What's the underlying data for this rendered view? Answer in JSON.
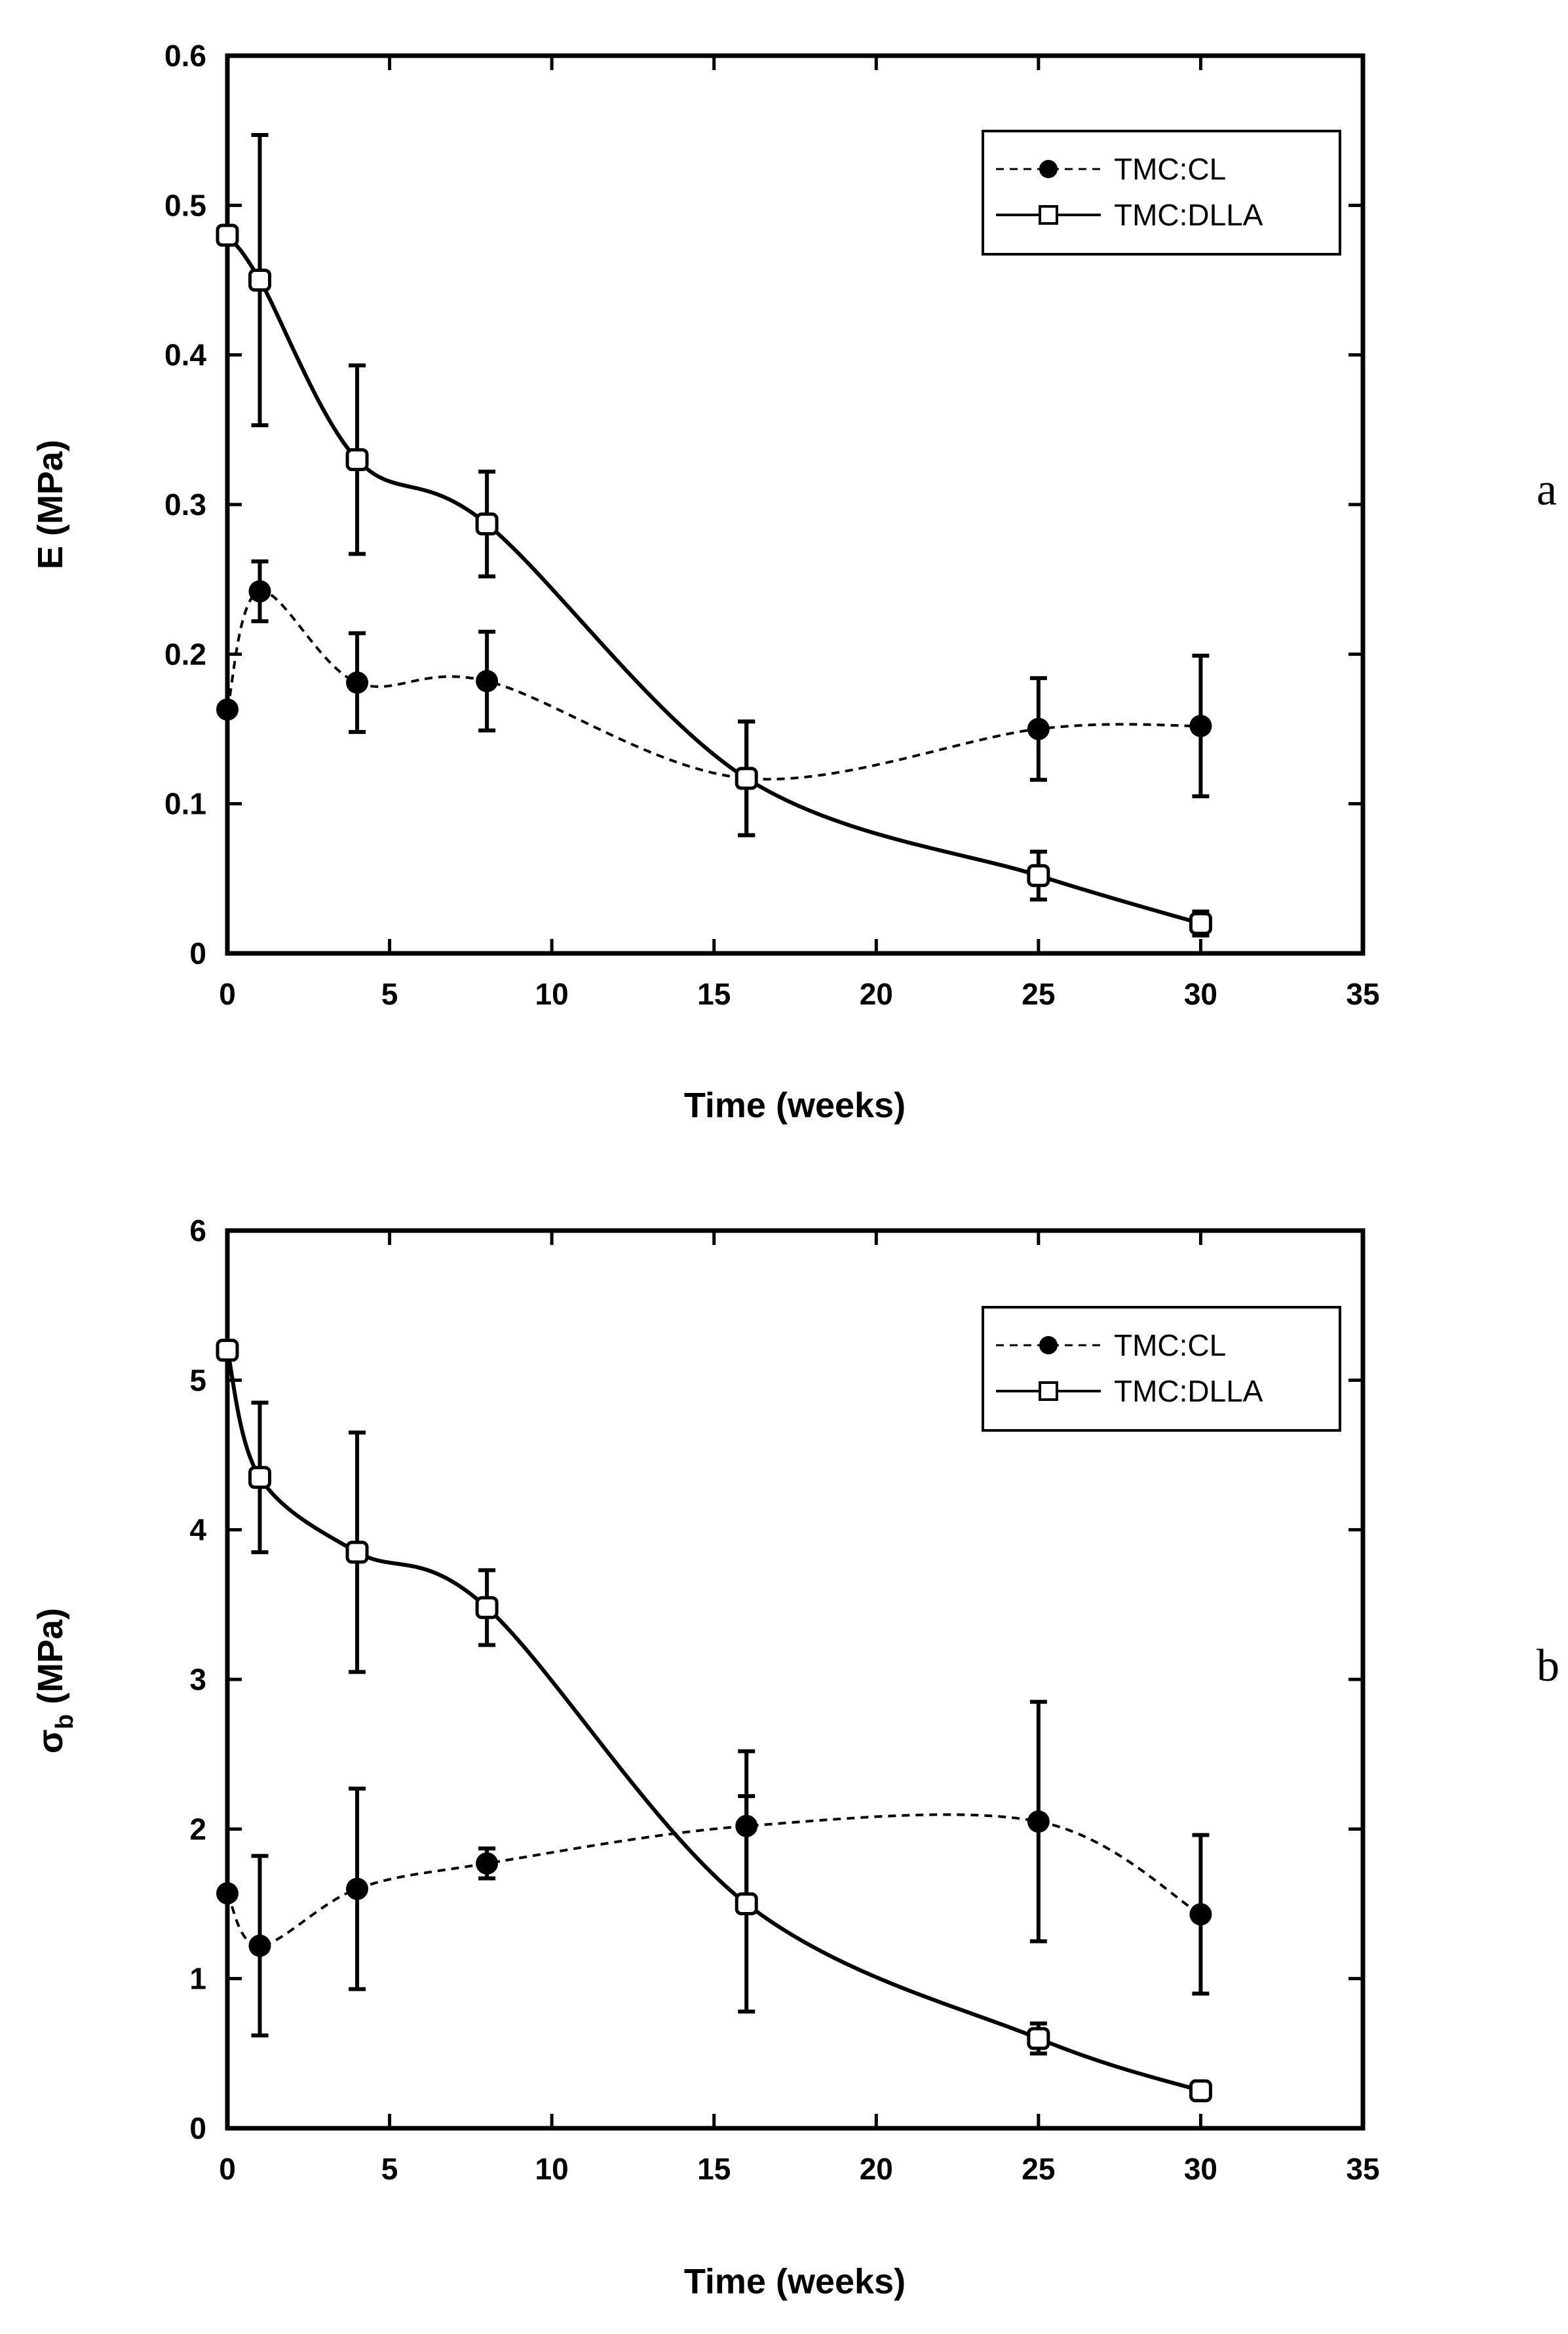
{
  "chart_data": [
    {
      "type": "line",
      "panel_label": "a",
      "title": "",
      "xlabel": "Time  (weeks)",
      "ylabel": "E (MPa)",
      "xlim": [
        0,
        35
      ],
      "ylim": [
        0,
        0.6
      ],
      "xticks": [
        "0",
        "5",
        "10",
        "15",
        "20",
        "25",
        "30",
        "35"
      ],
      "yticks": [
        "0",
        "0.1",
        "0.2",
        "0.3",
        "0.4",
        "0.5",
        "0.6"
      ],
      "legend_position": "top-right",
      "series": [
        {
          "name": "TMC:CL",
          "marker": "filled-circle",
          "line": "dashed",
          "x": [
            0,
            1,
            4,
            8,
            16,
            25,
            30
          ],
          "y": [
            0.163,
            0.242,
            0.181,
            0.182,
            0.117,
            0.15,
            0.152
          ],
          "err": [
            0,
            0.02,
            0.033,
            0.033,
            0.038,
            0.034,
            0.047
          ]
        },
        {
          "name": "TMC:DLLA",
          "marker": "open-square",
          "line": "solid",
          "x": [
            0,
            1,
            4,
            8,
            16,
            25,
            30
          ],
          "y": [
            0.48,
            0.45,
            0.33,
            0.287,
            0.117,
            0.052,
            0.02
          ],
          "err": [
            0,
            0.097,
            0.063,
            0.035,
            0.038,
            0.016,
            0.008
          ]
        }
      ]
    },
    {
      "type": "line",
      "panel_label": "b",
      "title": "",
      "xlabel": "Time  (weeks)",
      "ylabel": "σb (MPa)",
      "ylabel_main": "σ",
      "ylabel_sub": "b",
      "ylabel_unit": " (MPa)",
      "xlim": [
        0,
        35
      ],
      "ylim": [
        0,
        6
      ],
      "xticks": [
        "0",
        "5",
        "10",
        "15",
        "20",
        "25",
        "30",
        "35"
      ],
      "yticks": [
        "0",
        "1",
        "2",
        "3",
        "4",
        "5",
        "6"
      ],
      "legend_position": "top-right",
      "series": [
        {
          "name": "TMC:CL",
          "marker": "filled-circle",
          "line": "dashed",
          "x": [
            0,
            1,
            4,
            8,
            16,
            25,
            30
          ],
          "y": [
            1.57,
            1.22,
            1.6,
            1.77,
            2.02,
            2.05,
            1.43
          ],
          "err": [
            0,
            0.6,
            0.67,
            0.1,
            0.5,
            0.8,
            0.53
          ]
        },
        {
          "name": "TMC:DLLA",
          "marker": "open-square",
          "line": "solid",
          "x": [
            0,
            1,
            4,
            8,
            16,
            25,
            30
          ],
          "y": [
            5.2,
            4.35,
            3.85,
            3.48,
            1.5,
            0.6,
            0.25
          ],
          "err": [
            0,
            0.5,
            0.8,
            0.25,
            0.72,
            0.1,
            0.05
          ]
        }
      ]
    }
  ]
}
